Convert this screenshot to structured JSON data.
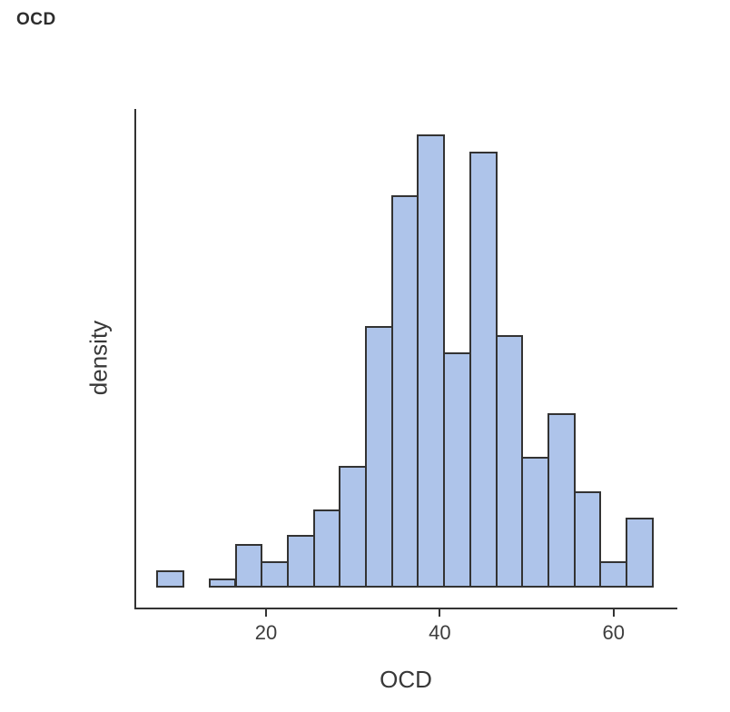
{
  "page": {
    "title": "OCD"
  },
  "chart_data": {
    "type": "histogram",
    "title": "OCD",
    "xlabel": "OCD",
    "ylabel": "density",
    "x_ticks": [
      20,
      40,
      60
    ],
    "x_tick_labels": [
      "20",
      "40",
      "60"
    ],
    "y_tick_labels": [],
    "xlim": [
      5,
      67.3
    ],
    "ylim": [
      0,
      0.055
    ],
    "grid": false,
    "legend": "none",
    "bin_width": 3,
    "bin_edges": [
      7.5,
      10.5,
      13.5,
      16.5,
      19.5,
      22.5,
      25.5,
      28.5,
      31.5,
      34.5,
      37.5,
      40.5,
      43.5,
      46.5,
      49.5,
      52.5,
      55.5,
      58.5,
      61.5,
      64.5
    ],
    "bin_centers": [
      9,
      12,
      15,
      18,
      21,
      24,
      27,
      30,
      33,
      36,
      39,
      42,
      45,
      48,
      51,
      54,
      57,
      60,
      63
    ],
    "counts": [
      2,
      0,
      1,
      5,
      3,
      6,
      9,
      14,
      30,
      45,
      52,
      27,
      50,
      29,
      15,
      20,
      11,
      3,
      8
    ],
    "densities": [
      0.00202,
      0,
      0.00101,
      0.00505,
      0.00303,
      0.00606,
      0.00909,
      0.01414,
      0.0303,
      0.04545,
      0.05253,
      0.02727,
      0.05051,
      0.02929,
      0.01515,
      0.0202,
      0.01111,
      0.00303,
      0.00808
    ],
    "colors": {
      "bar_fill": "#aec4ea",
      "bar_border": "#333333",
      "axis_line": "#333333",
      "tick_label": "#3d3d3d",
      "axis_title": "#383838",
      "page_title": "#2d2d2d",
      "background": "#ffffff"
    }
  }
}
